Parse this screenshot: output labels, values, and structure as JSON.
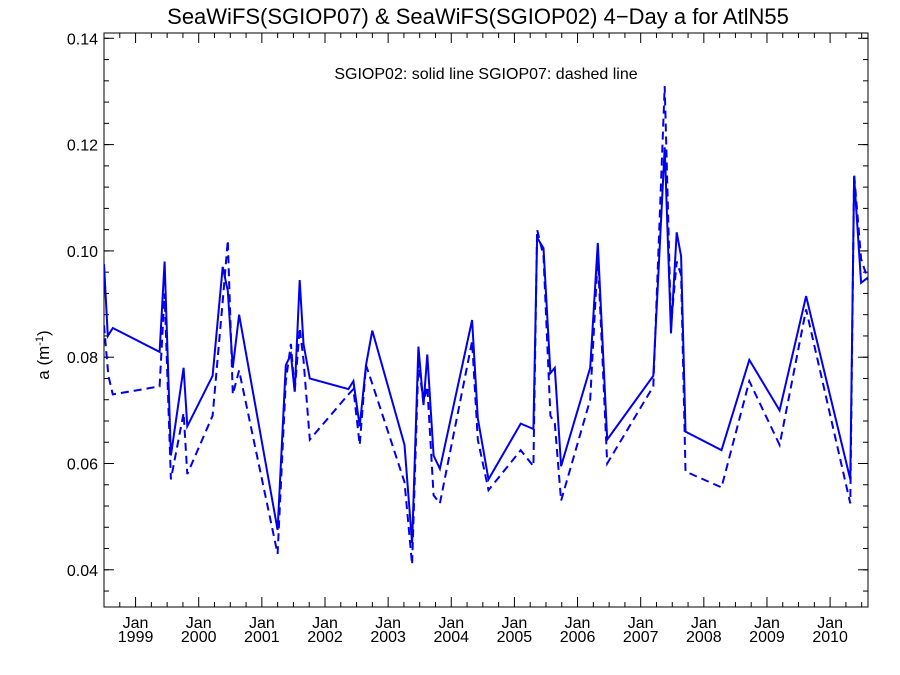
{
  "chart_data": {
    "type": "line",
    "title": "SeaWiFS(SGIOP07) & SeaWiFS(SGIOP02) 4−Day a for AtlN55",
    "annotation": "SGIOP02: solid line   SGIOP07: dashed line",
    "ylabel": "a (m",
    "ylabel_sup": "-1",
    "ylabel_close": ")",
    "ylim": [
      0.033,
      0.141
    ],
    "yticks": [
      0.04,
      0.06,
      0.08,
      0.1,
      0.12,
      0.14
    ],
    "ytick_labels": [
      "0.04",
      "0.06",
      "0.08",
      "0.10",
      "0.12",
      "0.14"
    ],
    "xlim": [
      1998.5,
      2010.6
    ],
    "xticks": [
      1999,
      2000,
      2001,
      2002,
      2003,
      2004,
      2005,
      2006,
      2007,
      2008,
      2009,
      2010
    ],
    "xtick_month": "Jan",
    "xtick_years": [
      "1999",
      "2000",
      "2001",
      "2002",
      "2003",
      "2004",
      "2005",
      "2006",
      "2007",
      "2008",
      "2009",
      "2010"
    ],
    "grid": false,
    "line_color": "#0000ee",
    "series": [
      {
        "style": "solid",
        "x": [
          1998.5,
          1998.56,
          1998.64,
          1999.38,
          1999.46,
          1999.56,
          1999.76,
          1999.82,
          2000.22,
          2000.38,
          2000.46,
          2000.54,
          2000.64,
          2001.25,
          2001.38,
          2001.46,
          2001.52,
          2001.6,
          2001.66,
          2001.76,
          2002.37,
          2002.45,
          2002.55,
          2002.65,
          2002.75,
          2003.26,
          2003.38,
          2003.48,
          2003.56,
          2003.62,
          2003.72,
          2003.82,
          2004.33,
          2004.42,
          2004.59,
          2005.1,
          2005.3,
          2005.36,
          2005.46,
          2005.57,
          2005.64,
          2005.74,
          2006.2,
          2006.32,
          2006.47,
          2007.2,
          2007.38,
          2007.48,
          2007.57,
          2007.64,
          2007.71,
          2008.28,
          2008.72,
          2009.2,
          2009.62,
          2010.32,
          2010.38,
          2010.49,
          2010.6
        ],
        "y": [
          0.0975,
          0.084,
          0.0855,
          0.081,
          0.098,
          0.0615,
          0.078,
          0.067,
          0.0765,
          0.097,
          0.0925,
          0.078,
          0.088,
          0.0475,
          0.0785,
          0.0805,
          0.0735,
          0.0945,
          0.0825,
          0.076,
          0.074,
          0.0755,
          0.067,
          0.0785,
          0.085,
          0.0635,
          0.045,
          0.082,
          0.071,
          0.0805,
          0.0615,
          0.059,
          0.087,
          0.0685,
          0.057,
          0.0675,
          0.0665,
          0.1025,
          0.1005,
          0.077,
          0.078,
          0.0595,
          0.078,
          0.1015,
          0.0645,
          0.0765,
          0.1195,
          0.0845,
          0.1035,
          0.099,
          0.066,
          0.0625,
          0.0795,
          0.07,
          0.0915,
          0.057,
          0.114,
          0.094,
          0.095
        ]
      },
      {
        "style": "dashed",
        "x": [
          1998.5,
          1998.57,
          1998.64,
          1999.38,
          1999.46,
          1999.56,
          1999.76,
          1999.82,
          2000.22,
          2000.38,
          2000.46,
          2000.54,
          2000.64,
          2001.25,
          2001.38,
          2001.46,
          2001.52,
          2001.6,
          2001.66,
          2001.76,
          2002.37,
          2002.45,
          2002.55,
          2002.65,
          2002.75,
          2003.26,
          2003.38,
          2003.48,
          2003.56,
          2003.62,
          2003.72,
          2003.82,
          2004.33,
          2004.42,
          2004.59,
          2005.1,
          2005.3,
          2005.36,
          2005.46,
          2005.57,
          2005.64,
          2005.74,
          2006.2,
          2006.32,
          2006.47,
          2007.2,
          2007.38,
          2007.48,
          2007.57,
          2007.64,
          2007.71,
          2008.28,
          2008.72,
          2009.2,
          2009.62,
          2010.32,
          2010.38,
          2010.49,
          2010.6
        ],
        "y": [
          0.086,
          0.0765,
          0.073,
          0.0745,
          0.092,
          0.057,
          0.0695,
          0.058,
          0.069,
          0.0905,
          0.102,
          0.073,
          0.0775,
          0.043,
          0.0755,
          0.0825,
          0.0735,
          0.0855,
          0.0795,
          0.0645,
          0.073,
          0.074,
          0.0635,
          0.0785,
          0.075,
          0.0565,
          0.041,
          0.079,
          0.0715,
          0.0745,
          0.054,
          0.0525,
          0.083,
          0.0645,
          0.055,
          0.0625,
          0.0595,
          0.104,
          0.099,
          0.069,
          0.0675,
          0.053,
          0.072,
          0.099,
          0.06,
          0.0745,
          0.131,
          0.086,
          0.098,
          0.0955,
          0.0585,
          0.0555,
          0.0755,
          0.0635,
          0.089,
          0.0525,
          0.1145,
          0.0985,
          0.0945
        ]
      }
    ]
  }
}
